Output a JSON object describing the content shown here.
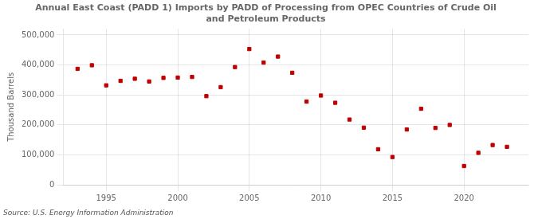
{
  "chart_data": {
    "type": "scatter",
    "title": "Annual East Coast (PADD 1) Imports by PADD of Processing from OPEC Countries of Crude Oil\nand Petroleum Products",
    "ylabel": "Thousand Barrels",
    "annotations": [
      "Source: U.S. Energy Information Administration"
    ],
    "x": [
      1993,
      1994,
      1995,
      1996,
      1997,
      1998,
      1999,
      2000,
      2001,
      2002,
      2003,
      2004,
      2005,
      2006,
      2007,
      2008,
      2009,
      2010,
      2011,
      2012,
      2013,
      2014,
      2015,
      2016,
      2017,
      2018,
      2019,
      2020,
      2021,
      2022,
      2023
    ],
    "values": [
      387000,
      399000,
      332000,
      347000,
      354000,
      345000,
      357000,
      358000,
      360000,
      296000,
      326000,
      393000,
      453000,
      408000,
      428000,
      374000,
      278000,
      298000,
      274000,
      218000,
      191000,
      119000,
      93000,
      185000,
      254000,
      190000,
      200000,
      63000,
      107000,
      133000,
      127000
    ],
    "color": "#c00000",
    "marker": "square",
    "xlim": [
      1992,
      2024.5
    ],
    "xticks": [
      1995,
      2000,
      2005,
      2010,
      2015,
      2020
    ],
    "ylim": [
      0,
      520000
    ],
    "yticks": [
      0,
      {
        "value": 100000,
        "label": "100,000"
      },
      {
        "value": 200000,
        "label": "200,000"
      },
      {
        "value": 300000,
        "label": "300,000"
      },
      {
        "value": 400000,
        "label": "400,000"
      },
      {
        "value": 500000,
        "label": "500,000"
      }
    ],
    "grid": true
  }
}
